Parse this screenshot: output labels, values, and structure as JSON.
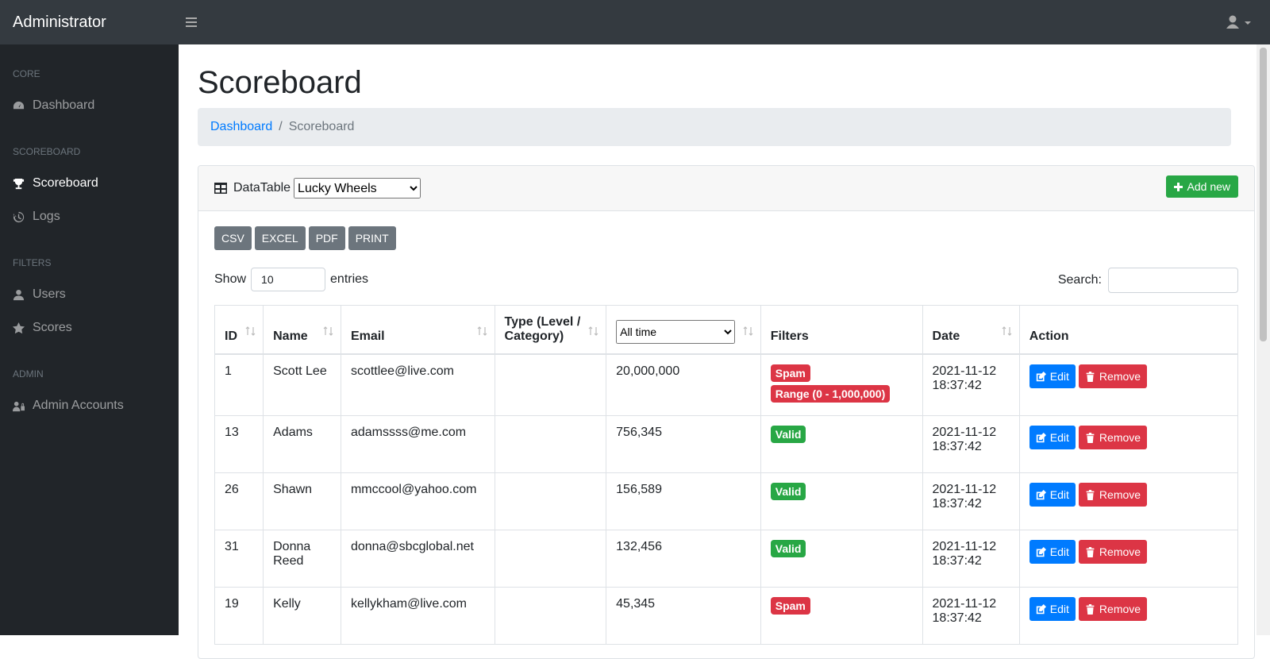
{
  "navbar": {
    "brand": "Administrator"
  },
  "sidebar": {
    "sections": [
      {
        "heading": "CORE",
        "items": [
          "Dashboard"
        ]
      },
      {
        "heading": "SCOREBOARD",
        "items": [
          "Scoreboard",
          "Logs"
        ]
      },
      {
        "heading": "FILTERS",
        "items": [
          "Users",
          "Scores"
        ]
      },
      {
        "heading": "ADMIN",
        "items": [
          "Admin Accounts"
        ]
      }
    ],
    "active": "Scoreboard"
  },
  "page": {
    "title": "Scoreboard",
    "breadcrumb": [
      "Dashboard",
      "Scoreboard"
    ]
  },
  "card": {
    "label": "DataTable",
    "select": "Lucky Wheels",
    "add_button": "Add new",
    "export_buttons": [
      "CSV",
      "EXCEL",
      "PDF",
      "PRINT"
    ],
    "show_label": "Show",
    "length": "10",
    "entries_label": "entries",
    "search_label": "Search:"
  },
  "table": {
    "columns": [
      "ID",
      "Name",
      "Email",
      "Type (Level / Category)",
      "All time",
      "Filters",
      "Date",
      "Action"
    ],
    "edit": "Edit",
    "remove": "Remove",
    "rows": [
      {
        "id": "1",
        "name": "Scott Lee",
        "email": "scottlee@live.com",
        "score": "20,000,000",
        "filters": [
          {
            "text": "Spam",
            "color": "#dc3545"
          },
          {
            "text": "Range (0 - 1,000,000)",
            "color": "#dc3545"
          }
        ],
        "date": "2021-11-12 18:37:42"
      },
      {
        "id": "13",
        "name": "Adams",
        "email": "adamssss@me.com",
        "score": "756,345",
        "filters": [
          {
            "text": "Valid",
            "color": "#28a745"
          }
        ],
        "date": "2021-11-12 18:37:42"
      },
      {
        "id": "26",
        "name": "Shawn",
        "email": "mmccool@yahoo.com",
        "score": "156,589",
        "filters": [
          {
            "text": "Valid",
            "color": "#28a745"
          }
        ],
        "date": "2021-11-12 18:37:42"
      },
      {
        "id": "31",
        "name": "Donna Reed",
        "email": "donna@sbcglobal.net",
        "score": "132,456",
        "filters": [
          {
            "text": "Valid",
            "color": "#28a745"
          }
        ],
        "date": "2021-11-12 18:37:42"
      },
      {
        "id": "19",
        "name": "Kelly",
        "email": "kellykham@live.com",
        "score": "45,345",
        "filters": [
          {
            "text": "Spam",
            "color": "#dc3545"
          }
        ],
        "date": "2021-11-12 18:37:42"
      }
    ]
  }
}
